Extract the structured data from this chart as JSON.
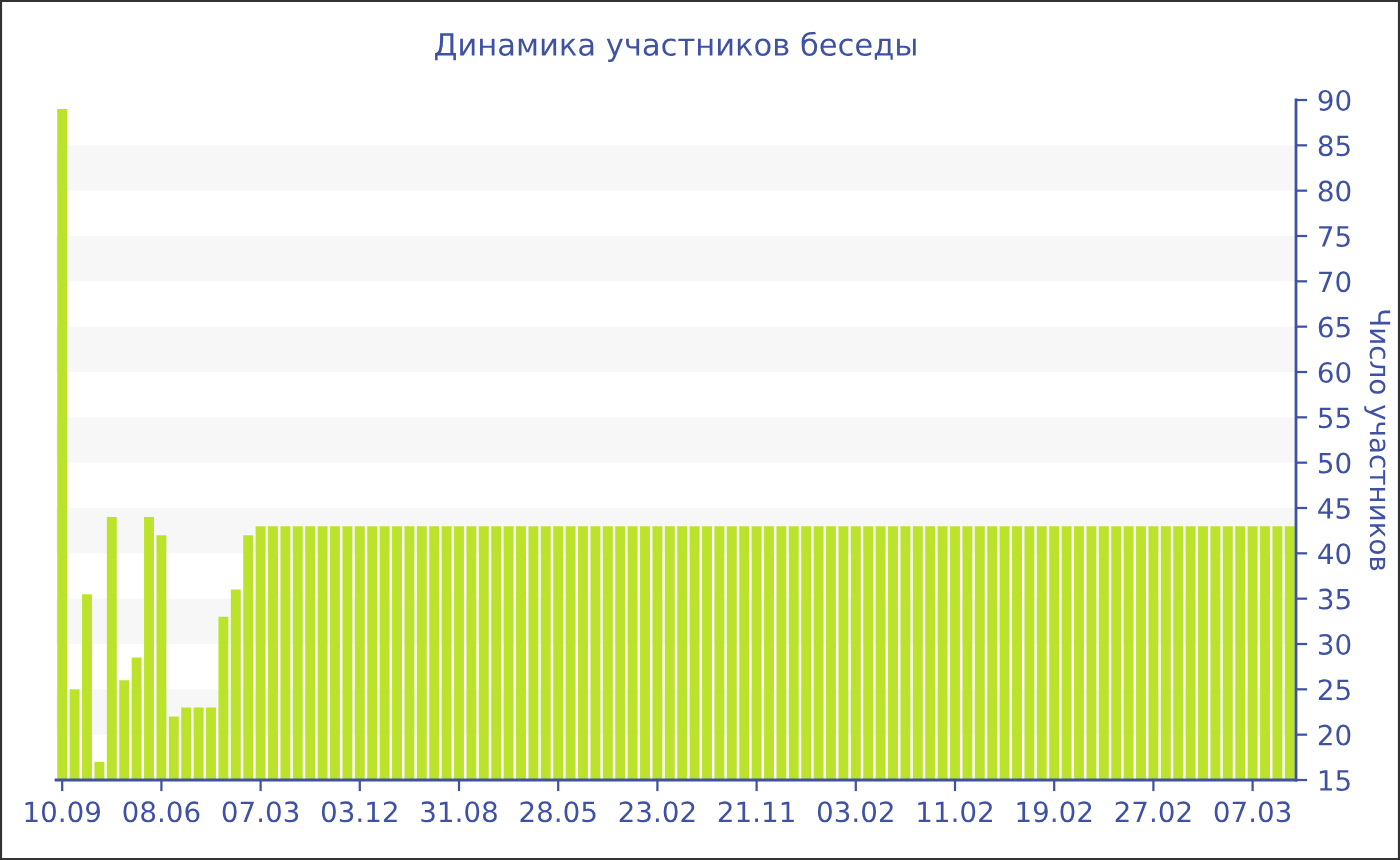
{
  "chart_data": {
    "type": "bar",
    "title": "Динамика участников беседы",
    "ylabel": "Число участников",
    "categories": [
      "10.09",
      null,
      null,
      null,
      null,
      null,
      null,
      null,
      "08.06",
      null,
      null,
      null,
      null,
      null,
      null,
      null,
      "07.03",
      null,
      null,
      null,
      null,
      null,
      null,
      null,
      "03.12",
      null,
      null,
      null,
      null,
      null,
      null,
      null,
      "31.08",
      null,
      null,
      null,
      null,
      null,
      null,
      null,
      "28.05",
      null,
      null,
      null,
      null,
      null,
      null,
      null,
      "23.02",
      null,
      null,
      null,
      null,
      null,
      null,
      null,
      "21.11",
      null,
      null,
      null,
      null,
      null,
      null,
      null,
      "03.02",
      null,
      null,
      null,
      null,
      null,
      null,
      null,
      "11.02",
      null,
      null,
      null,
      null,
      null,
      null,
      null,
      "19.02",
      null,
      null,
      null,
      null,
      null,
      null,
      null,
      "27.02",
      null,
      null,
      null,
      null,
      null,
      null,
      null,
      "07.03",
      null,
      null,
      null
    ],
    "series": [
      {
        "color": "#bce32c",
        "values": [
          89,
          25,
          35.5,
          17,
          44,
          26,
          28.5,
          44,
          42,
          22,
          23,
          23,
          23,
          33,
          36,
          42,
          43,
          43,
          43,
          43,
          43,
          43,
          43,
          43,
          43,
          43,
          43,
          43,
          43,
          43,
          43,
          43,
          43,
          43,
          43,
          43,
          43,
          43,
          43,
          43,
          43,
          43,
          43,
          43,
          43,
          43,
          43,
          43,
          43,
          43,
          43,
          43,
          43,
          43,
          43,
          43,
          43,
          43,
          43,
          43,
          43,
          43,
          43,
          43,
          43,
          43,
          43,
          43,
          43,
          43,
          43,
          43,
          43,
          43,
          43,
          43,
          43,
          43,
          43,
          43,
          43,
          43,
          43,
          43,
          43,
          43,
          43,
          43,
          43,
          43,
          43,
          43,
          43,
          43,
          43,
          43,
          43,
          43,
          43,
          43
        ]
      }
    ],
    "ylim": [
      15,
      90
    ],
    "yticks": [
      15,
      20,
      25,
      30,
      35,
      40,
      45,
      50,
      55,
      60,
      65,
      70,
      75,
      80,
      85,
      90
    ],
    "bands": [
      {
        "axis": "y",
        "from": 20,
        "to": 25,
        "color": "#f7f7f7"
      },
      {
        "axis": "y",
        "from": 30,
        "to": 35,
        "color": "#f7f7f7"
      },
      {
        "axis": "y",
        "from": 40,
        "to": 45,
        "color": "#f7f7f7"
      },
      {
        "axis": "y",
        "from": 50,
        "to": 55,
        "color": "#f7f7f7"
      },
      {
        "axis": "y",
        "from": 60,
        "to": 65,
        "color": "#f7f7f7"
      },
      {
        "axis": "y",
        "from": 70,
        "to": 75,
        "color": "#f7f7f7"
      },
      {
        "axis": "y",
        "from": 80,
        "to": 85,
        "color": "#f7f7f7"
      }
    ],
    "grid": false,
    "legend": false
  }
}
